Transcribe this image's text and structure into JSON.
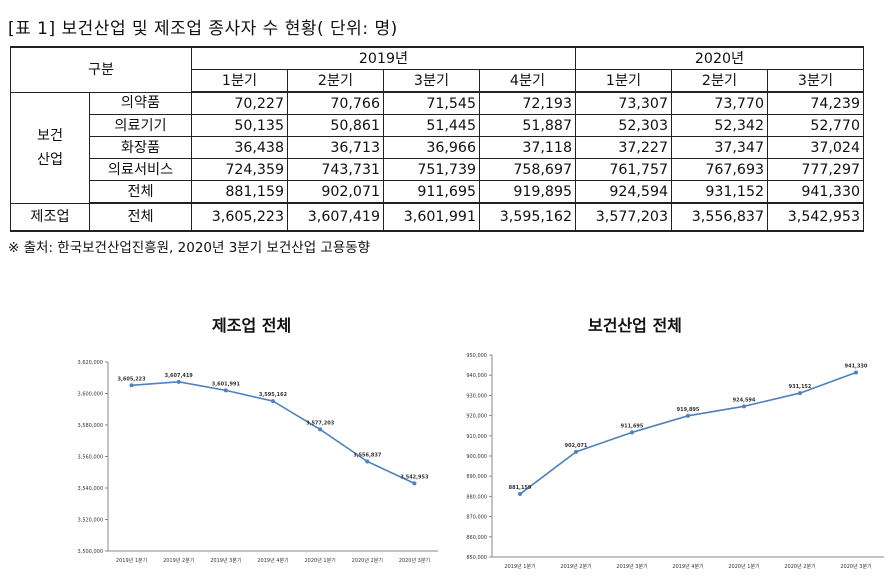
{
  "title": "[표 1] 보건산업 및 제조업 종사자 수 현황( 단위: 명)",
  "table": {
    "corner": "구분",
    "years": [
      {
        "label": "2019년",
        "span": 4
      },
      {
        "label": "2020년",
        "span": 3
      }
    ],
    "quarters": [
      "1분기",
      "2분기",
      "3분기",
      "4분기",
      "1분기",
      "2분기",
      "3분기"
    ],
    "group_health": "보건\n산업",
    "group_manufacturing": "제조업",
    "rows": [
      {
        "label": "의약품",
        "values": [
          "70,227",
          "70,766",
          "71,545",
          "72,193",
          "73,307",
          "73,770",
          "74,239"
        ]
      },
      {
        "label": "의료기기",
        "values": [
          "50,135",
          "50,861",
          "51,445",
          "51,887",
          "52,303",
          "52,342",
          "52,770"
        ]
      },
      {
        "label": "화장품",
        "values": [
          "36,438",
          "36,713",
          "36,966",
          "37,118",
          "37,227",
          "37,347",
          "37,024"
        ]
      },
      {
        "label": "의료서비스",
        "values": [
          "724,359",
          "743,731",
          "751,739",
          "758,697",
          "761,757",
          "767,693",
          "777,297"
        ]
      },
      {
        "label": "전체",
        "values": [
          "881,159",
          "902,071",
          "911,695",
          "919,895",
          "924,594",
          "931,152",
          "941,330"
        ]
      }
    ],
    "manufacturing_row": {
      "label": "전체",
      "values": [
        "3,605,223",
        "3,607,419",
        "3,601,991",
        "3,595,162",
        "3,577,203",
        "3,556,837",
        "3,542,953"
      ]
    }
  },
  "source": "※ 출처: 한국보건산업진흥원, 2020년 3분기 보건산업 고용동향",
  "colors": {
    "line": "#4f81bd",
    "grid": "#d9d9d9",
    "text": "#111111"
  },
  "chart_data": [
    {
      "type": "line",
      "title": "제조업 전체",
      "categories": [
        "2019년 1분기",
        "2019년 2분기",
        "2019년 3분기",
        "2019년 4분기",
        "2020년 1분기",
        "2020년 2분기",
        "2020년 3분기"
      ],
      "values": [
        3605223,
        3607419,
        3601991,
        3595162,
        3577203,
        3556837,
        3542953
      ],
      "value_labels": [
        "3,605,223",
        "3,607,419",
        "3,601,991",
        "3,595,162",
        "3,577,203",
        "3,556,837",
        "3,542,953"
      ],
      "ylim": [
        3500000,
        3620000
      ],
      "yticks": [
        3500000,
        3520000,
        3540000,
        3560000,
        3580000,
        3600000,
        3620000
      ],
      "ytick_labels": [
        "3,500,000",
        "3,520,000",
        "3,540,000",
        "3,560,000",
        "3,580,000",
        "3,600,000",
        "3,620,000"
      ],
      "grid": false
    },
    {
      "type": "line",
      "title": "보건산업 전체",
      "categories": [
        "2019년 1분기",
        "2019년 2분기",
        "2019년 3분기",
        "2019년 4분기",
        "2020년 1분기",
        "2020년 2분기",
        "2020년 3분기"
      ],
      "values": [
        881159,
        902071,
        911695,
        919895,
        924594,
        931152,
        941330
      ],
      "value_labels": [
        "881,159",
        "902,071",
        "911,695",
        "919,895",
        "924,594",
        "931,152",
        "941,330"
      ],
      "ylim": [
        850000,
        950000
      ],
      "yticks": [
        850000,
        860000,
        870000,
        880000,
        890000,
        900000,
        910000,
        920000,
        930000,
        940000,
        950000
      ],
      "ytick_labels": [
        "850,000",
        "860,000",
        "870,000",
        "880,000",
        "890,000",
        "900,000",
        "910,000",
        "920,000",
        "930,000",
        "940,000",
        "950,000"
      ],
      "grid": false
    }
  ]
}
